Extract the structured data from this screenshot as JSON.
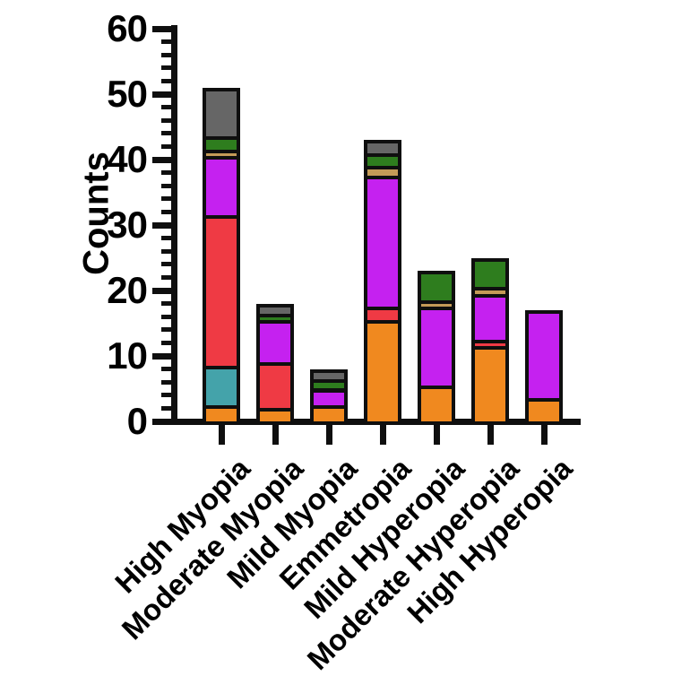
{
  "chart_data": {
    "type": "bar",
    "stacked": true,
    "title": "",
    "xlabel": "",
    "ylabel": "Counts",
    "ylim": [
      0,
      60
    ],
    "ytick_interval_major": 10,
    "ytick_interval_minor": 2,
    "ytick_labels": [
      "0",
      "10",
      "20",
      "30",
      "40",
      "50",
      "60"
    ],
    "legend_position": "none",
    "grid": false,
    "axis_color": "#0f0f0f",
    "categories": [
      "High Myopia",
      "Moderate Myopia",
      "Mild Myopia",
      "Emmetropia",
      "Mild Hyperopia",
      "Moderate Hyperopia",
      "High Hyperopia"
    ],
    "bar_totals": [
      51,
      18,
      8,
      43,
      23,
      25,
      17
    ],
    "series": [
      {
        "name": "orange-segment",
        "color": "#F0891F",
        "values": [
          2.5,
          2,
          2.5,
          15.5,
          5.5,
          11.5,
          3.5
        ]
      },
      {
        "name": "teal-segment",
        "color": "#44A3AA",
        "values": [
          6,
          0,
          0,
          0,
          0,
          0,
          0
        ]
      },
      {
        "name": "red-segment",
        "color": "#EF3A44",
        "values": [
          23,
          7,
          0,
          2,
          0,
          1,
          0
        ]
      },
      {
        "name": "magenta-segment",
        "color": "#C521F0",
        "values": [
          9,
          6.5,
          2.5,
          20,
          12,
          7,
          13.5
        ]
      },
      {
        "name": "tan-segment",
        "color": "#C49B57",
        "values": [
          1,
          0,
          0,
          1.5,
          1,
          1,
          0
        ]
      },
      {
        "name": "green-segment",
        "color": "#2E7D1E",
        "values": [
          2,
          1,
          1.5,
          2,
          4.5,
          4.5,
          0
        ]
      },
      {
        "name": "gray-segment",
        "color": "#666666",
        "values": [
          7.5,
          1.5,
          1.5,
          2,
          0,
          0,
          0
        ]
      }
    ]
  }
}
